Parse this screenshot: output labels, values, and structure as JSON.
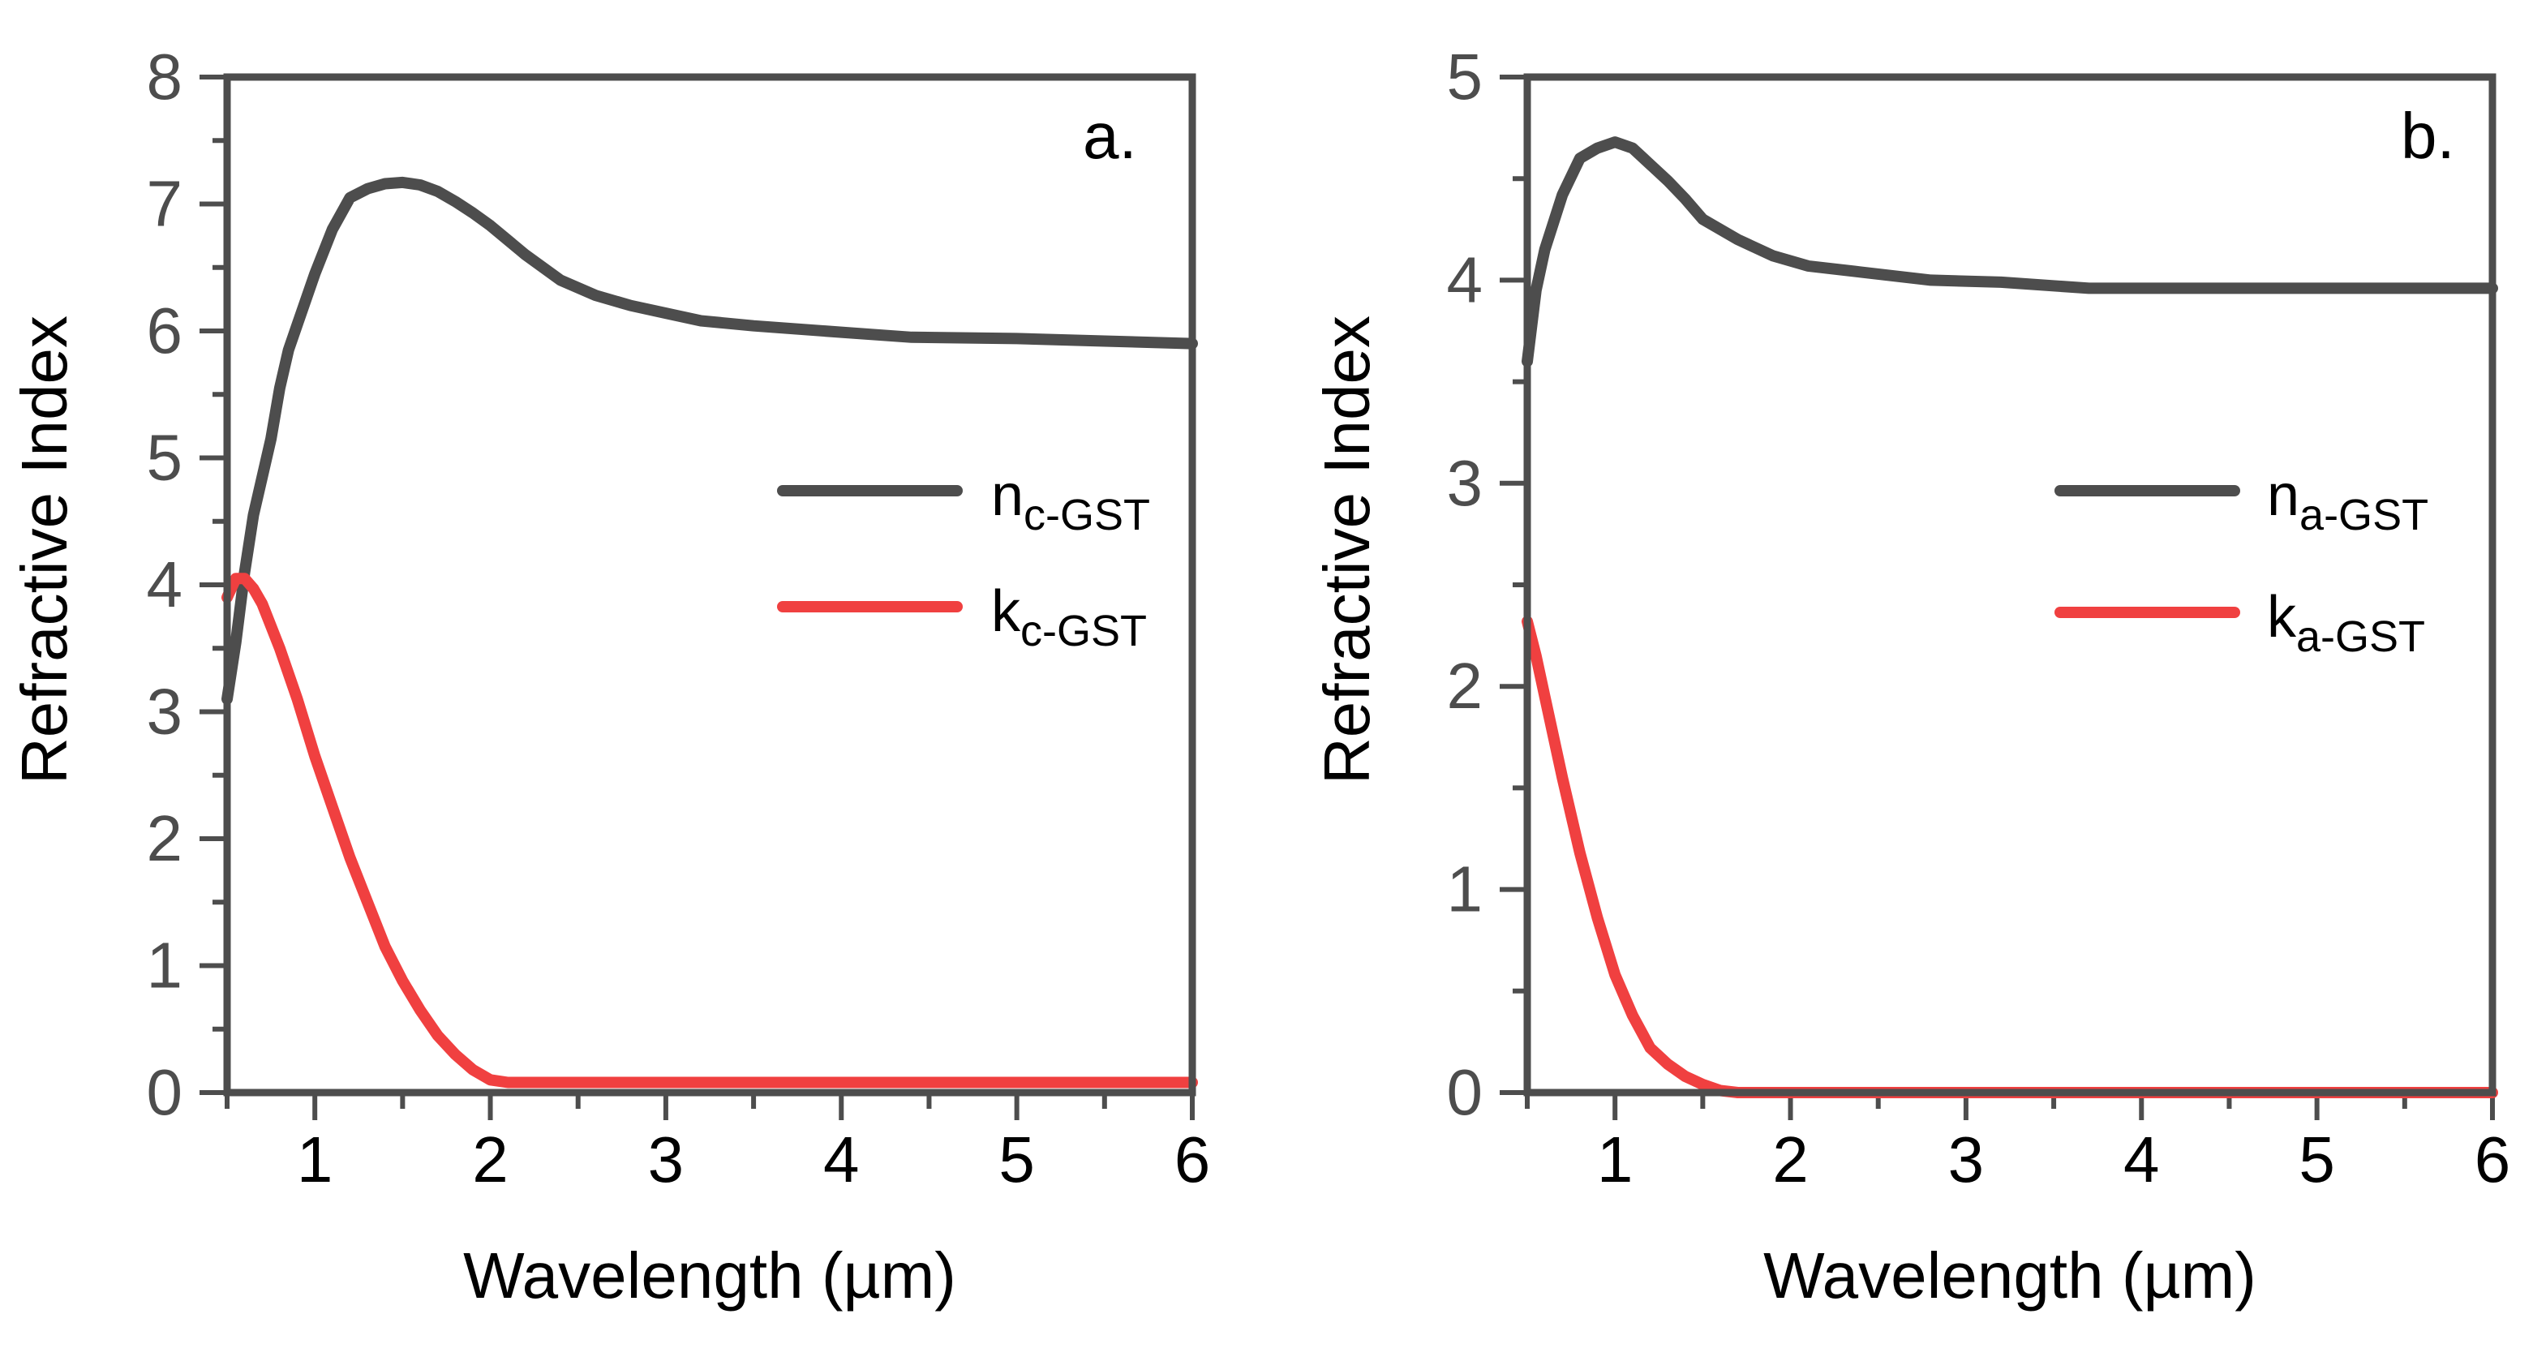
{
  "figure": {
    "background": "#ffffff",
    "axis_color": "#4d4d4d"
  },
  "chart_data": [
    {
      "type": "line",
      "panel": "a.",
      "xlabel": "Wavelength (µm)",
      "ylabel": "Refractive Index",
      "xlim": [
        0.5,
        6
      ],
      "ylim": [
        0,
        8
      ],
      "xticks": [
        1,
        2,
        3,
        4,
        5,
        6
      ],
      "yticks": [
        0,
        1,
        2,
        3,
        4,
        5,
        6,
        7,
        8
      ],
      "legend_position": "center-right",
      "series": [
        {
          "name": "n",
          "subscript": "c-GST",
          "color": "#4d4d4d",
          "x": [
            0.5,
            0.55,
            0.6,
            0.65,
            0.7,
            0.75,
            0.8,
            0.85,
            0.9,
            1.0,
            1.1,
            1.2,
            1.3,
            1.4,
            1.5,
            1.6,
            1.7,
            1.8,
            1.9,
            2.0,
            2.2,
            2.4,
            2.6,
            2.8,
            3.0,
            3.2,
            3.5,
            4.0,
            4.4,
            5.0,
            5.5,
            6.0
          ],
          "y": [
            3.1,
            3.55,
            4.1,
            4.55,
            4.85,
            5.15,
            5.55,
            5.85,
            6.05,
            6.45,
            6.8,
            7.05,
            7.12,
            7.16,
            7.17,
            7.15,
            7.1,
            7.02,
            6.93,
            6.83,
            6.6,
            6.4,
            6.28,
            6.2,
            6.14,
            6.08,
            6.04,
            5.99,
            5.95,
            5.94,
            5.92,
            5.9
          ]
        },
        {
          "name": "k",
          "subscript": "c-GST",
          "color": "#f04040",
          "x": [
            0.5,
            0.55,
            0.6,
            0.65,
            0.7,
            0.8,
            0.9,
            1.0,
            1.1,
            1.2,
            1.3,
            1.4,
            1.5,
            1.6,
            1.7,
            1.8,
            1.9,
            2.0,
            2.1,
            2.15,
            2.2,
            2.5,
            3.0,
            4.0,
            5.0,
            6.0
          ],
          "y": [
            3.9,
            4.05,
            4.05,
            3.97,
            3.85,
            3.5,
            3.1,
            2.65,
            2.25,
            1.85,
            1.5,
            1.15,
            0.88,
            0.65,
            0.45,
            0.3,
            0.18,
            0.1,
            0.08,
            0.08,
            0.08,
            0.08,
            0.08,
            0.08,
            0.08,
            0.08
          ]
        }
      ]
    },
    {
      "type": "line",
      "panel": "b.",
      "xlabel": "Wavelength (µm)",
      "ylabel": "Refractive Index",
      "xlim": [
        0.5,
        6
      ],
      "ylim": [
        0,
        5
      ],
      "xticks": [
        1,
        2,
        3,
        4,
        5,
        6
      ],
      "yticks": [
        0,
        1,
        2,
        3,
        4,
        5
      ],
      "legend_position": "center-right",
      "series": [
        {
          "name": "n",
          "subscript": "a-GST",
          "color": "#4d4d4d",
          "x": [
            0.5,
            0.55,
            0.6,
            0.7,
            0.8,
            0.9,
            1.0,
            1.1,
            1.2,
            1.3,
            1.4,
            1.5,
            1.7,
            1.9,
            2.1,
            2.4,
            2.8,
            3.2,
            3.7,
            4.5,
            5.5,
            6.0
          ],
          "y": [
            3.6,
            3.95,
            4.15,
            4.42,
            4.6,
            4.65,
            4.68,
            4.65,
            4.57,
            4.49,
            4.4,
            4.3,
            4.2,
            4.12,
            4.07,
            4.04,
            4.0,
            3.99,
            3.96,
            3.96,
            3.96,
            3.96
          ]
        },
        {
          "name": "k",
          "subscript": "a-GST",
          "color": "#f04040",
          "x": [
            0.5,
            0.55,
            0.6,
            0.7,
            0.8,
            0.9,
            1.0,
            1.1,
            1.2,
            1.3,
            1.4,
            1.5,
            1.6,
            1.7,
            1.8,
            2.0,
            3.0,
            4.0,
            5.0,
            6.0
          ],
          "y": [
            2.32,
            2.15,
            1.95,
            1.55,
            1.18,
            0.86,
            0.58,
            0.38,
            0.22,
            0.14,
            0.08,
            0.04,
            0.01,
            0.0,
            0.0,
            0.0,
            0.0,
            0.0,
            0.0,
            0.0
          ]
        }
      ]
    }
  ]
}
